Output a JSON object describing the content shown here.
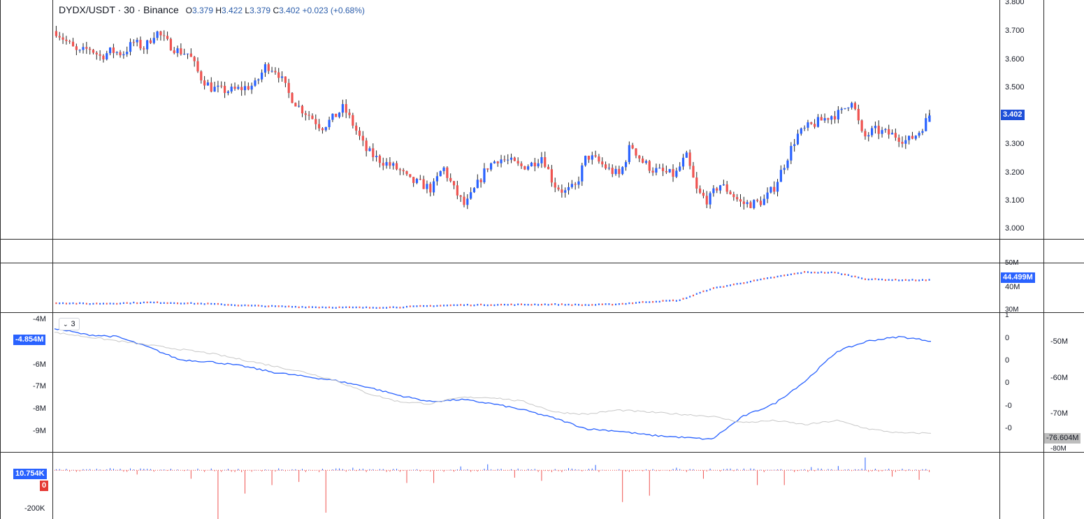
{
  "header": {
    "symbol": "DYDX/USDT",
    "separator1": "·",
    "interval": "30",
    "separator2": "·",
    "exchange": "Binance",
    "open_label": "O",
    "open": "3.379",
    "high_label": "H",
    "high": "3.422",
    "low_label": "L",
    "low": "3.379",
    "close_label": "C",
    "close": "3.402",
    "change": "+0.023 (+0.68%)"
  },
  "colors": {
    "up": "#2962ff",
    "down": "#ef5350",
    "accent": "#2962ff",
    "gray_line": "#c8c8c8",
    "red_tag": "#e53935",
    "gray_tag": "#9e9e9e"
  },
  "price_axis": {
    "ticks": [
      "3.800",
      "3.700",
      "3.600",
      "3.500",
      "3.400",
      "3.300",
      "3.200",
      "3.100",
      "3.000"
    ],
    "last_price": "3.402"
  },
  "volume_axis": {
    "ticks": [
      "50M",
      "40M",
      "30M"
    ],
    "last_value": "44.499M"
  },
  "cvd_pane": {
    "collapse_icon": "chevron-down-icon",
    "collapse_count": "3",
    "left_ticks": [
      "-4M",
      "-6M",
      "-7M",
      "-8M",
      "-9M"
    ],
    "left_last": "-4.854M",
    "mid_ticks": [
      "1",
      "0",
      "0",
      "0",
      "-0",
      "-0"
    ],
    "right_ticks": [
      "-50M",
      "-60M",
      "-70M",
      "-80M"
    ],
    "right_last": "-76.604M"
  },
  "delta_pane": {
    "left_ticks": [
      "-200K"
    ],
    "last_value": "10.754K",
    "zero_tag": "0"
  },
  "chart_data": [
    {
      "type": "candlestick",
      "title": "DYDX/USDT · 30 · Binance",
      "ylim": [
        3.0,
        3.8
      ],
      "last": {
        "open": 3.379,
        "high": 3.422,
        "low": 3.379,
        "close": 3.402
      },
      "series": [
        {
          "name": "DYDX/USDT",
          "close_path": [
            3.7,
            3.66,
            3.62,
            3.64,
            3.61,
            3.63,
            3.62,
            3.66,
            3.64,
            3.7,
            3.66,
            3.63,
            3.62,
            3.54,
            3.5,
            3.49,
            3.49,
            3.5,
            3.51,
            3.58,
            3.56,
            3.48,
            3.43,
            3.4,
            3.36,
            3.39,
            3.43,
            3.36,
            3.28,
            3.25,
            3.23,
            3.21,
            3.17,
            3.16,
            3.14,
            3.22,
            3.14,
            3.08,
            3.15,
            3.22,
            3.25,
            3.24,
            3.22,
            3.23,
            3.26,
            3.16,
            3.13,
            3.15,
            3.26,
            3.24,
            3.21,
            3.19,
            3.3,
            3.24,
            3.21,
            3.2,
            3.19,
            3.26,
            3.13,
            3.1,
            3.16,
            3.13,
            3.09,
            3.09,
            3.1,
            3.15,
            3.24,
            3.33,
            3.36,
            3.38,
            3.4,
            3.41,
            3.46,
            3.32,
            3.35,
            3.34,
            3.33,
            3.31,
            3.34,
            3.4
          ]
        }
      ]
    },
    {
      "type": "area",
      "ylim": [
        30,
        52
      ],
      "series": [
        {
          "name": "44.499M",
          "values": [
            34,
            33.6,
            33.8,
            34.2,
            33.9,
            33.5,
            32.8,
            32.4,
            32.1,
            31.9,
            31.8,
            32.0,
            32.6,
            33.0,
            33.1,
            33.2,
            33.3,
            33.0,
            33.4,
            34.5,
            35.2,
            40.5,
            43.2,
            45.8,
            48.2,
            48.0,
            45.0,
            44.6,
            44.5
          ]
        }
      ]
    },
    {
      "type": "line",
      "ylim": [
        -9.5,
        -3.5
      ],
      "series": [
        {
          "name": "-4.854M",
          "values": [
            -4.0,
            -4.3,
            -4.4,
            -4.9,
            -5.5,
            -5.6,
            -5.8,
            -6.1,
            -6.3,
            -6.5,
            -6.8,
            -7.2,
            -7.5,
            -7.4,
            -7.6,
            -7.9,
            -8.3,
            -8.8,
            -8.9,
            -9.1,
            -9.2,
            -9.3,
            -8.2,
            -7.6,
            -6.5,
            -5.1,
            -4.6,
            -4.4,
            -4.6
          ]
        },
        {
          "name": "-76.604M",
          "values": [
            -4.2,
            -4.4,
            -4.6,
            -4.8,
            -5.0,
            -5.2,
            -5.5,
            -5.8,
            -6.1,
            -6.5,
            -7.1,
            -7.5,
            -7.6,
            -7.3,
            -7.3,
            -7.5,
            -8.0,
            -8.1,
            -7.9,
            -8.0,
            -8.1,
            -8.2,
            -8.5,
            -8.4,
            -8.6,
            -8.4,
            -8.8,
            -9.0,
            -9.0
          ]
        }
      ]
    },
    {
      "type": "bar",
      "ylim": [
        -220,
        60
      ],
      "series": [
        {
          "name": "10.754K",
          "values": [
            5,
            10,
            -20,
            4,
            -40,
            -230,
            -110,
            -70,
            -55,
            -200,
            12,
            6,
            -60,
            18,
            28,
            -35,
            -50,
            10,
            25,
            -150,
            -120,
            12,
            -40,
            8,
            -70,
            15,
            20,
            60,
            -30,
            -45
          ]
        }
      ]
    }
  ]
}
